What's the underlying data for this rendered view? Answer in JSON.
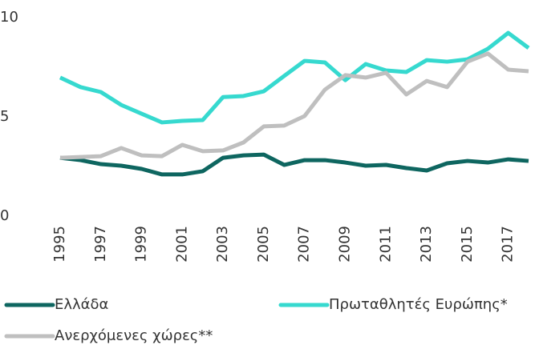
{
  "chart_data": {
    "type": "line",
    "x": [
      1995,
      1996,
      1997,
      1998,
      1999,
      2000,
      2001,
      2002,
      2003,
      2004,
      2005,
      2006,
      2007,
      2008,
      2009,
      2010,
      2011,
      2012,
      2013,
      2014,
      2015,
      2016,
      2017,
      2018
    ],
    "xlim": [
      1995,
      2018
    ],
    "xticks": [
      1995,
      1997,
      1999,
      2001,
      2003,
      2005,
      2007,
      2009,
      2011,
      2013,
      2015,
      2017
    ],
    "ylim": [
      0,
      10
    ],
    "yticks": [
      0,
      5,
      10
    ],
    "grid": false,
    "legend": "bottom",
    "series": [
      {
        "name": "Ελλάδα",
        "color": "#0e6660",
        "values": [
          2.94,
          2.82,
          2.62,
          2.54,
          2.38,
          2.1,
          2.1,
          2.26,
          2.94,
          3.06,
          3.1,
          2.58,
          2.82,
          2.82,
          2.7,
          2.54,
          2.58,
          2.42,
          2.3,
          2.66,
          2.78,
          2.7,
          2.86,
          2.78
        ]
      },
      {
        "name": "Πρωταθλητές Ευρώπης*",
        "color": "#36d9cf",
        "values": [
          6.98,
          6.5,
          6.25,
          5.6,
          5.16,
          4.72,
          4.8,
          4.84,
          6.0,
          6.05,
          6.29,
          7.06,
          7.82,
          7.74,
          6.85,
          7.66,
          7.34,
          7.26,
          7.86,
          7.78,
          7.9,
          8.43,
          9.23,
          8.47
        ]
      },
      {
        "name": "Ανερχόμενες χώρες**",
        "color": "#bfbfbf",
        "values": [
          2.94,
          2.98,
          3.02,
          3.43,
          3.06,
          3.02,
          3.59,
          3.27,
          3.31,
          3.71,
          4.52,
          4.56,
          5.04,
          6.37,
          7.1,
          6.98,
          7.22,
          6.13,
          6.81,
          6.5,
          7.78,
          8.19,
          7.38,
          7.3
        ]
      }
    ]
  }
}
